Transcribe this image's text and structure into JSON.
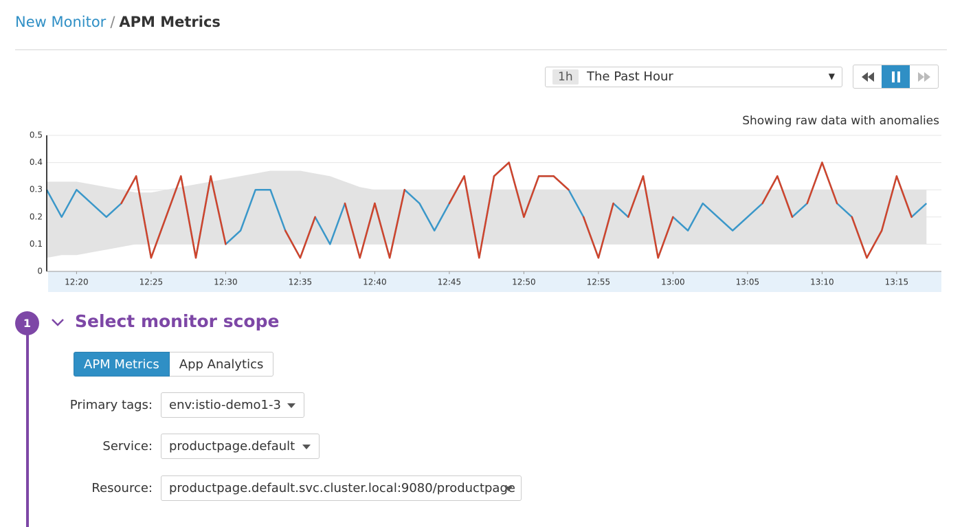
{
  "breadcrumb": {
    "parent": "New Monitor",
    "separator": "/",
    "current": "APM Metrics"
  },
  "time_picker": {
    "badge": "1h",
    "label": "The Past Hour"
  },
  "chart_data": {
    "type": "line",
    "annotation": "Showing raw data with anomalies",
    "x": [
      "12:18",
      "12:19",
      "12:20",
      "12:21",
      "12:22",
      "12:23",
      "12:24",
      "12:25",
      "12:26",
      "12:27",
      "12:28",
      "12:29",
      "12:30",
      "12:31",
      "12:32",
      "12:33",
      "12:34",
      "12:35",
      "12:36",
      "12:37",
      "12:38",
      "12:39",
      "12:40",
      "12:41",
      "12:42",
      "12:43",
      "12:44",
      "12:45",
      "12:46",
      "12:47",
      "12:48",
      "12:49",
      "12:50",
      "12:51",
      "12:52",
      "12:53",
      "12:54",
      "12:55",
      "12:56",
      "12:57",
      "12:58",
      "12:59",
      "13:00",
      "13:01",
      "13:02",
      "13:03",
      "13:04",
      "13:05",
      "13:06",
      "13:07",
      "13:08",
      "13:09",
      "13:10",
      "13:11",
      "13:12",
      "13:13",
      "13:14",
      "13:15",
      "13:16",
      "13:17"
    ],
    "series": [
      {
        "color": "#3a97c9",
        "values": [
          0.3,
          0.2,
          0.3,
          0.25,
          0.2,
          0.25,
          0.35,
          0.05,
          0.2,
          0.35,
          0.05,
          0.35,
          0.1,
          0.15,
          0.3,
          0.3,
          0.15,
          0.05,
          0.2,
          0.1,
          0.25,
          0.05,
          0.25,
          0.05,
          0.3,
          0.25,
          0.15,
          0.25,
          0.35,
          0.05,
          0.35,
          0.4,
          0.2,
          0.35,
          0.35,
          0.3,
          0.2,
          0.05,
          0.25,
          0.2,
          0.35,
          0.05,
          0.2,
          0.15,
          0.25,
          0.2,
          0.15,
          0.2,
          0.25,
          0.35,
          0.2,
          0.25,
          0.4,
          0.25,
          0.2,
          0.05,
          0.15,
          0.35,
          0.2,
          0.25
        ]
      }
    ],
    "anomaly_color": "#d0442b",
    "band": {
      "color": "#e3e3e3",
      "upper": [
        0.33,
        0.33,
        0.33,
        0.32,
        0.31,
        0.3,
        0.29,
        0.29,
        0.3,
        0.31,
        0.32,
        0.33,
        0.34,
        0.35,
        0.36,
        0.37,
        0.37,
        0.37,
        0.36,
        0.35,
        0.33,
        0.31,
        0.3,
        0.3,
        0.3,
        0.3,
        0.3,
        0.3,
        0.3,
        0.3,
        0.3,
        0.3,
        0.3,
        0.3,
        0.3,
        0.3,
        0.3,
        0.3,
        0.3,
        0.3,
        0.3,
        0.3,
        0.3,
        0.3,
        0.3,
        0.3,
        0.3,
        0.3,
        0.3,
        0.3,
        0.3,
        0.3,
        0.3,
        0.3,
        0.3,
        0.3,
        0.3,
        0.3,
        0.3,
        0.3
      ],
      "lower": [
        0.05,
        0.06,
        0.06,
        0.07,
        0.08,
        0.09,
        0.1,
        0.1,
        0.1,
        0.1,
        0.1,
        0.1,
        0.1,
        0.1,
        0.1,
        0.1,
        0.1,
        0.1,
        0.1,
        0.1,
        0.1,
        0.1,
        0.1,
        0.1,
        0.1,
        0.1,
        0.1,
        0.1,
        0.1,
        0.1,
        0.1,
        0.1,
        0.1,
        0.1,
        0.1,
        0.1,
        0.1,
        0.1,
        0.1,
        0.1,
        0.1,
        0.1,
        0.1,
        0.1,
        0.1,
        0.1,
        0.1,
        0.1,
        0.1,
        0.1,
        0.1,
        0.1,
        0.1,
        0.1,
        0.1,
        0.1,
        0.1,
        0.1,
        0.1,
        0.1
      ]
    },
    "xlim": [
      "12:18",
      "13:18"
    ],
    "xticks": [
      "12:20",
      "12:25",
      "12:30",
      "12:35",
      "12:40",
      "12:45",
      "12:50",
      "12:55",
      "13:00",
      "13:05",
      "13:10",
      "13:15"
    ],
    "ylim": [
      0,
      0.5
    ],
    "yticks": [
      0,
      0.1,
      0.2,
      0.3,
      0.4,
      0.5
    ],
    "grid": true
  },
  "step": {
    "number": "1",
    "title": "Select monitor scope",
    "tabs": [
      "APM Metrics",
      "App Analytics"
    ],
    "fields": [
      {
        "label": "Primary tags:",
        "value": "env:istio-demo1-3"
      },
      {
        "label": "Service:",
        "value": "productpage.default"
      },
      {
        "label": "Resource:",
        "value": "productpage.default.svc.cluster.local:9080/productpage"
      }
    ]
  }
}
